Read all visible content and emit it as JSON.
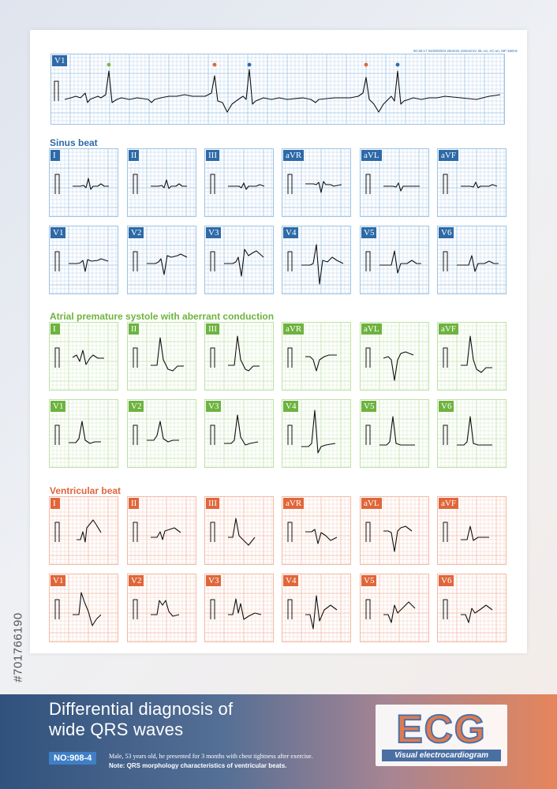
{
  "side_id": "#701766190",
  "rhythm": {
    "lead": "V1",
    "header": "00:36:17 04/28/2023 25mm/s 10mm/mV, BL:on, AC:on, MF:150Hz",
    "markers": [
      {
        "beat": 1,
        "type": "sinus",
        "color": "#7ab648"
      },
      {
        "beat": 3,
        "type": "ventricular",
        "color": "#e0663a"
      },
      {
        "beat": 4,
        "type": "sinus",
        "color": "#2d6aa7"
      },
      {
        "beat": 6,
        "type": "ventricular",
        "color": "#e0663a"
      },
      {
        "beat": 7,
        "type": "sinus",
        "color": "#2d6aa7"
      }
    ]
  },
  "sections": [
    {
      "key": "sinus",
      "title": "Sinus beat",
      "color": "#2d6aa7",
      "grid_color": "#9ec3e3",
      "label_color": "#2d6aa7",
      "leads": [
        "I",
        "II",
        "III",
        "aVR",
        "aVL",
        "aVF",
        "V1",
        "V2",
        "V3",
        "V4",
        "V5",
        "V6"
      ]
    },
    {
      "key": "aberrant",
      "title": "Atrial premature systole with aberrant conduction",
      "color": "#6db33f",
      "grid_color": "#bfe0a6",
      "label_color": "#6db33f",
      "leads": [
        "I",
        "II",
        "III",
        "aVR",
        "aVL",
        "aVF",
        "V1",
        "V2",
        "V3",
        "V4",
        "V5",
        "V6"
      ]
    },
    {
      "key": "ventricular",
      "title": "Ventricular beat",
      "color": "#e0663a",
      "grid_color": "#f2b9a4",
      "label_color": "#e0663a",
      "leads": [
        "I",
        "II",
        "III",
        "aVR",
        "aVL",
        "aVF",
        "V1",
        "V2",
        "V3",
        "V4",
        "V5",
        "V6"
      ]
    }
  ],
  "footer": {
    "title_line1": "Differential diagnosis of",
    "title_line2": "wide QRS waves",
    "number": "NO:908-4",
    "description": "Male, 53 years old, he presented for 3 months with chest tightness after exercise.",
    "note": "Note: QRS morphology characteristics of ventricular beats.",
    "logo_word": "ECG",
    "logo_subtitle": "Visual electrocardiogram"
  }
}
